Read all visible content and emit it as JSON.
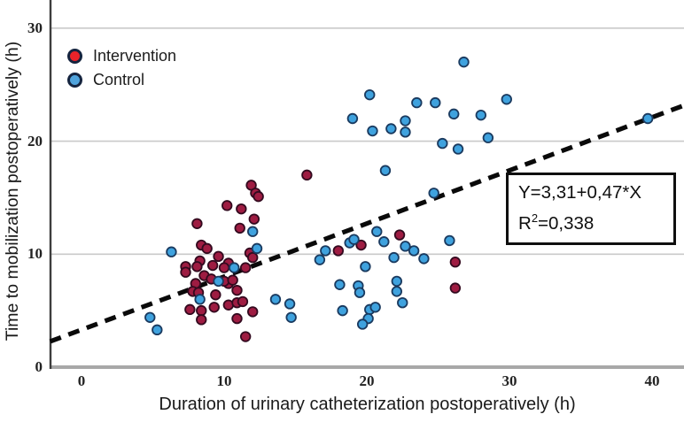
{
  "figure": {
    "legend": {
      "items": [
        {
          "label": "Intervention",
          "swatch_color": "#e8232a"
        },
        {
          "label": "Control",
          "swatch_color": "#4fa3dc"
        }
      ]
    },
    "annotation": {
      "equation_line": "Y=3,31+0,47*X",
      "r_base": "R",
      "r_sup": "2",
      "r_rest": "=0,338"
    },
    "x_axis": {
      "label": "Duration of urinary catheterization postoperatively (h)"
    },
    "y_axis": {
      "label": "Time to mobilization postoperatively (h)"
    }
  },
  "chart_data": {
    "type": "scatter",
    "title": "",
    "xlabel": "Duration of urinary catheterization postoperatively (h)",
    "ylabel": "Time to mobilization postoperatively (h)",
    "xlim": [
      -2.2,
      42.2
    ],
    "ylim": [
      0,
      32.5
    ],
    "x_ticks": [
      0,
      10,
      20,
      30,
      40
    ],
    "y_ticks": [
      0,
      10,
      20,
      30
    ],
    "grid": "horizontal-light-gray",
    "legend_position": "top-left-inside",
    "regression": {
      "equation": "Y=3,31+0,47*X",
      "r_squared": "R²=0,338",
      "intercept": 3.31,
      "slope": 0.47,
      "style": "dashed-black"
    },
    "series": [
      {
        "name": "Intervention",
        "color": "#9e1c42",
        "stroke": "#330a1f",
        "points": [
          [
            15.8,
            17.0
          ],
          [
            11.9,
            16.1
          ],
          [
            12.2,
            15.4
          ],
          [
            12.4,
            15.1
          ],
          [
            10.2,
            14.3
          ],
          [
            11.2,
            14.0
          ],
          [
            12.1,
            13.1
          ],
          [
            8.1,
            12.7
          ],
          [
            11.1,
            12.3
          ],
          [
            22.3,
            11.7
          ],
          [
            8.4,
            10.8
          ],
          [
            8.8,
            10.5
          ],
          [
            11.8,
            10.1
          ],
          [
            12.0,
            9.7
          ],
          [
            19.6,
            10.8
          ],
          [
            18.0,
            10.3
          ],
          [
            7.3,
            8.9
          ],
          [
            7.3,
            8.4
          ],
          [
            8.3,
            9.4
          ],
          [
            9.2,
            9.0
          ],
          [
            9.6,
            9.8
          ],
          [
            10.3,
            9.2
          ],
          [
            10.0,
            8.8
          ],
          [
            11.5,
            8.8
          ],
          [
            8.1,
            8.9
          ],
          [
            8.6,
            8.1
          ],
          [
            9.1,
            7.8
          ],
          [
            8.0,
            7.4
          ],
          [
            10.3,
            7.4
          ],
          [
            10.0,
            7.6
          ],
          [
            10.6,
            7.7
          ],
          [
            10.9,
            6.8
          ],
          [
            7.8,
            6.7
          ],
          [
            8.2,
            6.6
          ],
          [
            9.4,
            6.4
          ],
          [
            26.2,
            9.3
          ],
          [
            26.2,
            7.0
          ],
          [
            7.6,
            5.1
          ],
          [
            8.4,
            5.0
          ],
          [
            9.3,
            5.3
          ],
          [
            10.3,
            5.5
          ],
          [
            10.9,
            5.7
          ],
          [
            11.3,
            5.8
          ],
          [
            12.0,
            4.9
          ],
          [
            8.4,
            4.2
          ],
          [
            10.9,
            4.3
          ],
          [
            11.5,
            2.7
          ]
        ]
      },
      {
        "name": "Control",
        "color": "#3fa2de",
        "stroke": "#1a3a5f",
        "points": [
          [
            26.8,
            27.0
          ],
          [
            20.2,
            24.1
          ],
          [
            29.8,
            23.7
          ],
          [
            23.5,
            23.4
          ],
          [
            24.8,
            23.4
          ],
          [
            19.0,
            22.0
          ],
          [
            26.1,
            22.4
          ],
          [
            28.0,
            22.3
          ],
          [
            39.7,
            22.0
          ],
          [
            22.7,
            21.8
          ],
          [
            20.4,
            20.9
          ],
          [
            21.7,
            21.1
          ],
          [
            22.7,
            20.8
          ],
          [
            28.5,
            20.3
          ],
          [
            25.3,
            19.8
          ],
          [
            26.4,
            19.3
          ],
          [
            21.3,
            17.4
          ],
          [
            24.7,
            15.4
          ],
          [
            12.0,
            12.0
          ],
          [
            20.7,
            12.0
          ],
          [
            6.3,
            10.2
          ],
          [
            12.3,
            10.5
          ],
          [
            18.8,
            11.0
          ],
          [
            19.1,
            11.3
          ],
          [
            21.2,
            11.1
          ],
          [
            25.8,
            11.2
          ],
          [
            17.1,
            10.3
          ],
          [
            16.7,
            9.5
          ],
          [
            22.7,
            10.7
          ],
          [
            23.3,
            10.3
          ],
          [
            24.0,
            9.6
          ],
          [
            21.9,
            9.7
          ],
          [
            19.9,
            8.9
          ],
          [
            10.7,
            8.8
          ],
          [
            9.6,
            7.6
          ],
          [
            8.3,
            6.0
          ],
          [
            18.1,
            7.3
          ],
          [
            19.4,
            7.2
          ],
          [
            19.5,
            6.6
          ],
          [
            22.1,
            7.6
          ],
          [
            22.1,
            6.7
          ],
          [
            22.5,
            5.7
          ],
          [
            13.6,
            6.0
          ],
          [
            14.6,
            5.6
          ],
          [
            14.7,
            4.4
          ],
          [
            18.3,
            5.0
          ],
          [
            20.2,
            5.1
          ],
          [
            20.6,
            5.3
          ],
          [
            20.1,
            4.3
          ],
          [
            19.7,
            3.8
          ],
          [
            4.8,
            4.4
          ],
          [
            5.3,
            3.3
          ]
        ]
      }
    ]
  }
}
